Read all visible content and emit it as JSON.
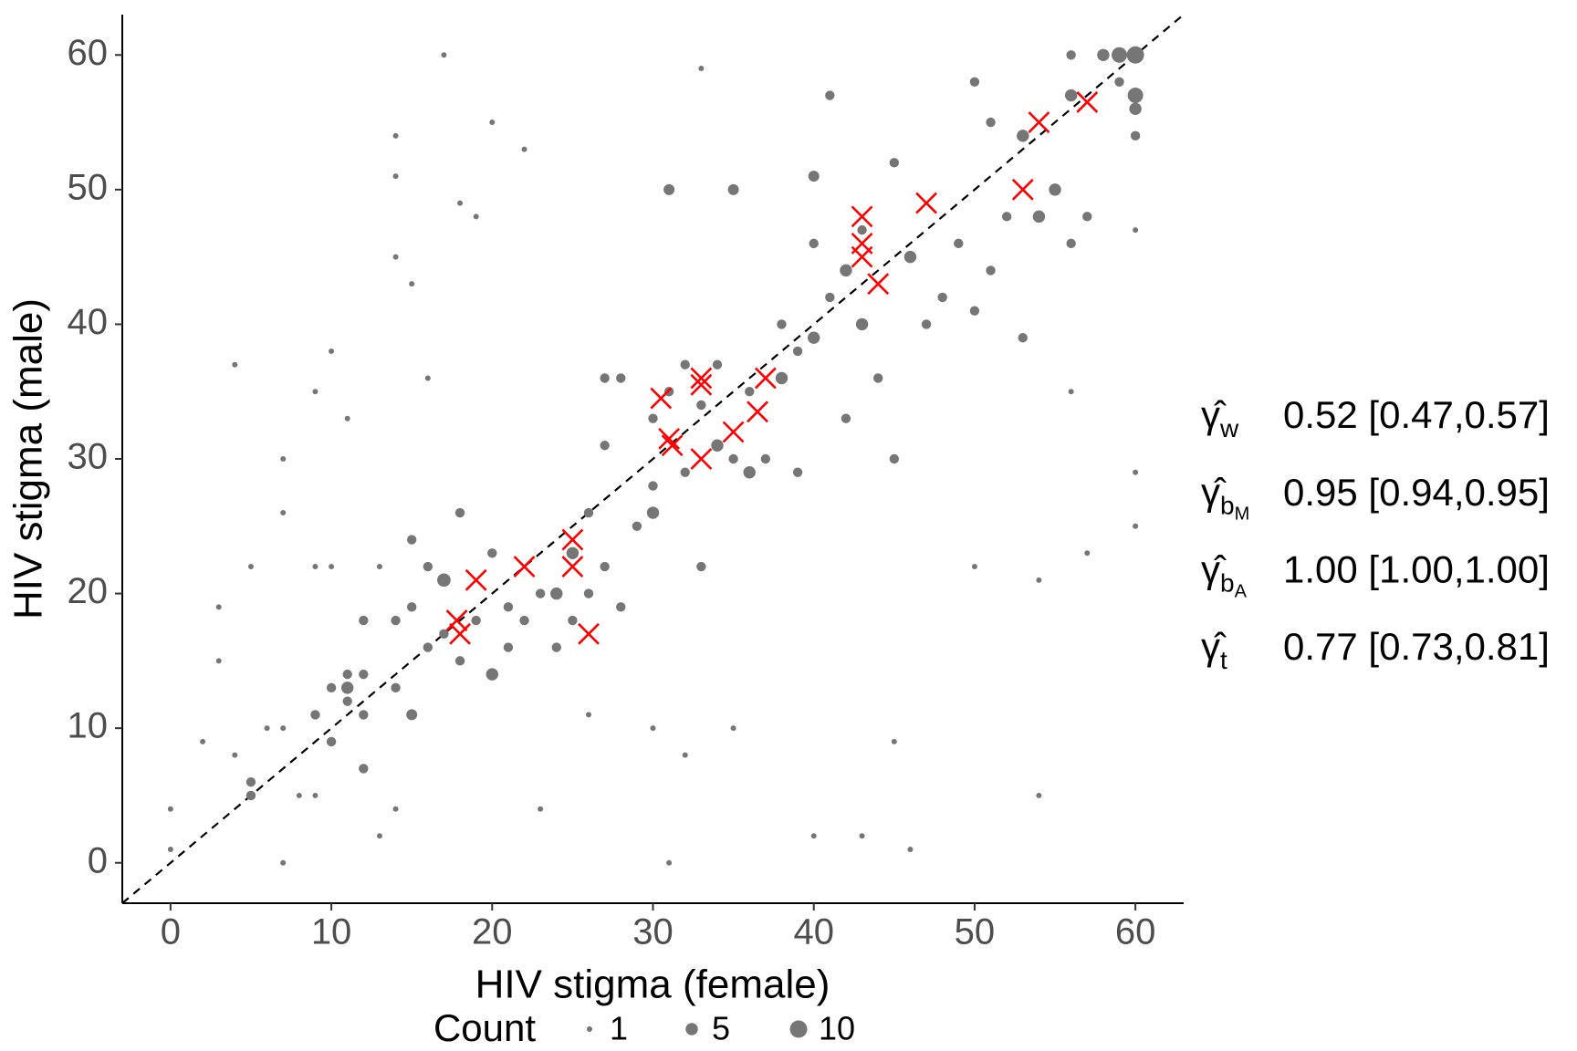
{
  "chart_data": {
    "type": "scatter",
    "x_label": "HIV stigma (female)",
    "y_label": "HIV stigma (male)",
    "xlim": [
      -3,
      63
    ],
    "ylim": [
      -3,
      63
    ],
    "xticks": [
      0,
      10,
      20,
      30,
      40,
      50,
      60
    ],
    "yticks": [
      0,
      10,
      20,
      30,
      40,
      50,
      60
    ],
    "diagonal": true,
    "series": [
      {
        "name": "Count",
        "color": "#767676",
        "x": [
          0,
          0,
          2,
          3,
          3,
          4,
          4,
          5,
          5,
          5,
          6,
          7,
          7,
          7,
          7,
          8,
          9,
          9,
          9,
          9,
          10,
          10,
          10,
          10,
          11,
          11,
          11,
          11,
          12,
          12,
          12,
          12,
          13,
          13,
          14,
          14,
          14,
          14,
          14,
          14,
          15,
          15,
          15,
          15,
          16,
          16,
          16,
          17,
          17,
          17,
          18,
          18,
          18,
          19,
          19,
          20,
          20,
          20,
          21,
          21,
          22,
          22,
          23,
          23,
          24,
          24,
          25,
          25,
          26,
          26,
          26,
          27,
          27,
          27,
          28,
          28,
          29,
          30,
          30,
          30,
          30,
          31,
          31,
          31,
          32,
          32,
          32,
          33,
          33,
          33,
          34,
          34,
          35,
          35,
          35,
          36,
          36,
          37,
          38,
          38,
          39,
          39,
          40,
          40,
          40,
          40,
          41,
          41,
          42,
          42,
          43,
          43,
          43,
          44,
          45,
          45,
          45,
          46,
          46,
          47,
          48,
          49,
          50,
          50,
          50,
          51,
          51,
          52,
          53,
          53,
          54,
          54,
          54,
          55,
          56,
          56,
          56,
          56,
          57,
          57,
          58,
          59,
          59,
          60,
          60,
          60,
          60,
          60,
          60,
          60
        ],
        "y": [
          4,
          1,
          9,
          19,
          15,
          37,
          8,
          6,
          5,
          22,
          10,
          30,
          26,
          10,
          0,
          5,
          35,
          22,
          11,
          5,
          38,
          22,
          13,
          9,
          14,
          12,
          13,
          33,
          18,
          14,
          11,
          7,
          2,
          22,
          54,
          45,
          51,
          18,
          13,
          4,
          24,
          19,
          11,
          43,
          22,
          16,
          36,
          60,
          21,
          17,
          49,
          26,
          15,
          48,
          18,
          23,
          14,
          55,
          19,
          16,
          53,
          18,
          20,
          4,
          20,
          16,
          23,
          18,
          26,
          20,
          11,
          36,
          31,
          22,
          36,
          19,
          25,
          26,
          28,
          33,
          10,
          50,
          35,
          0,
          37,
          29,
          8,
          34,
          22,
          59,
          37,
          31,
          50,
          30,
          10,
          35,
          29,
          30,
          36,
          40,
          38,
          29,
          51,
          39,
          46,
          2,
          57,
          42,
          44,
          33,
          47,
          40,
          2,
          36,
          52,
          30,
          9,
          45,
          1,
          40,
          42,
          46,
          58,
          41,
          22,
          55,
          44,
          48,
          54,
          39,
          48,
          21,
          5,
          50,
          60,
          57,
          46,
          35,
          48,
          23,
          60,
          60,
          58,
          60,
          57,
          56,
          54,
          29,
          25,
          47
        ],
        "sizes": [
          1,
          1,
          1,
          1,
          1,
          1,
          1,
          3,
          3,
          1,
          1,
          1,
          1,
          1,
          1,
          1,
          1,
          1,
          3,
          1,
          1,
          1,
          3,
          3,
          3,
          3,
          5,
          1,
          3,
          3,
          3,
          3,
          1,
          1,
          1,
          1,
          1,
          3,
          3,
          1,
          3,
          3,
          4,
          1,
          3,
          3,
          1,
          1,
          6,
          3,
          1,
          3,
          3,
          1,
          3,
          3,
          5,
          1,
          3,
          3,
          1,
          3,
          3,
          1,
          5,
          3,
          5,
          3,
          3,
          3,
          1,
          3,
          3,
          3,
          3,
          3,
          3,
          5,
          3,
          3,
          1,
          4,
          3,
          1,
          3,
          3,
          1,
          3,
          3,
          1,
          3,
          5,
          4,
          3,
          1,
          3,
          5,
          3,
          5,
          3,
          3,
          3,
          4,
          5,
          3,
          1,
          3,
          3,
          5,
          3,
          3,
          5,
          1,
          3,
          3,
          3,
          1,
          5,
          1,
          3,
          3,
          3,
          3,
          3,
          1,
          3,
          3,
          3,
          5,
          3,
          5,
          1,
          1,
          5,
          3,
          5,
          3,
          1,
          3,
          1,
          5,
          8,
          3,
          10,
          8,
          5,
          3,
          1,
          1,
          1
        ]
      },
      {
        "color": "#ff0000",
        "marker": "x",
        "x": [
          18,
          17.8,
          19,
          22,
          25,
          25,
          26,
          30.5,
          31,
          31.2,
          33,
          33,
          33,
          35,
          36.5,
          37,
          43,
          43,
          43,
          44,
          47,
          53,
          54,
          57
        ],
        "y": [
          17,
          18,
          21,
          22,
          24,
          22,
          17,
          34.5,
          31.5,
          31,
          36,
          35.5,
          30,
          32,
          33.5,
          36,
          48,
          46,
          45,
          43,
          49,
          50,
          55,
          56.5
        ]
      }
    ],
    "size_legend": {
      "title": "Count",
      "values": [
        1,
        5,
        10
      ]
    },
    "annotations": [
      {
        "symbol": "γ̂",
        "sub": "w",
        "text": "0.52 [0.47,0.57]"
      },
      {
        "symbol": "γ̂",
        "sub": "b",
        "subsub": "M",
        "text": "0.95 [0.94,0.95]"
      },
      {
        "symbol": "γ̂",
        "sub": "b",
        "subsub": "A",
        "text": "1.00 [1.00,1.00]"
      },
      {
        "symbol": "γ̂",
        "sub": "t",
        "text": "0.77 [0.73,0.81]"
      }
    ]
  }
}
